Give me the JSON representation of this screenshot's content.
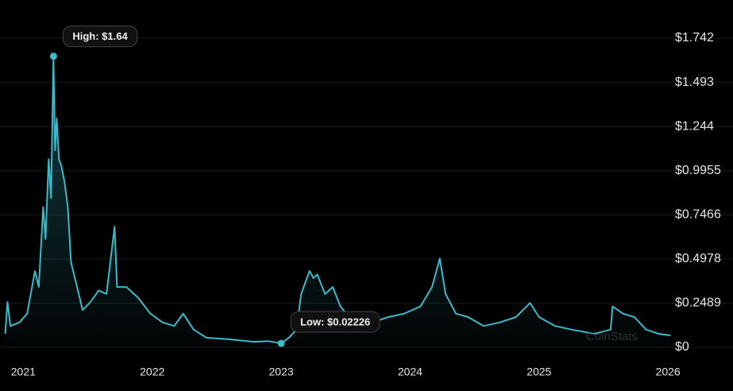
{
  "chart_data": {
    "type": "line",
    "watermark": "CoinStats",
    "x": [
      2020.86,
      2020.877,
      2020.9,
      2020.97,
      2021.03,
      2021.09,
      2021.12,
      2021.154,
      2021.172,
      2021.197,
      2021.215,
      2021.234,
      2021.246,
      2021.259,
      2021.277,
      2021.296,
      2021.32,
      2021.345,
      2021.37,
      2021.4,
      2021.43,
      2021.46,
      2021.52,
      2021.585,
      2021.645,
      2021.708,
      2021.727,
      2021.8,
      2021.89,
      2021.985,
      2022.08,
      2022.17,
      2022.24,
      2022.32,
      2022.42,
      2022.6,
      2022.79,
      2022.9,
      2023.0,
      2023.06,
      2023.12,
      2023.155,
      2023.22,
      2023.25,
      2023.28,
      2023.34,
      2023.4,
      2023.46,
      2023.585,
      2023.71,
      2023.83,
      2023.955,
      2024.08,
      2024.17,
      2024.23,
      2024.275,
      2024.355,
      2024.45,
      2024.57,
      2024.695,
      2024.82,
      2024.93,
      2025.0,
      2025.125,
      2025.25,
      2025.43,
      2025.555,
      2025.57,
      2025.65,
      2025.74,
      2025.83,
      2025.925,
      2026.02
    ],
    "series": [
      {
        "color": "#3db9c9",
        "values": [
          0.076,
          0.255,
          0.12,
          0.14,
          0.19,
          0.43,
          0.34,
          0.79,
          0.61,
          1.06,
          0.84,
          1.64,
          1.11,
          1.29,
          1.06,
          1.02,
          0.93,
          0.79,
          0.48,
          0.39,
          0.3,
          0.21,
          0.255,
          0.32,
          0.3,
          0.68,
          0.34,
          0.34,
          0.28,
          0.19,
          0.14,
          0.12,
          0.19,
          0.1,
          0.054,
          0.045,
          0.031,
          0.035,
          0.02226,
          0.054,
          0.1,
          0.3,
          0.43,
          0.39,
          0.41,
          0.3,
          0.34,
          0.23,
          0.12,
          0.14,
          0.17,
          0.19,
          0.23,
          0.34,
          0.5,
          0.3,
          0.19,
          0.17,
          0.12,
          0.14,
          0.17,
          0.25,
          0.17,
          0.12,
          0.1,
          0.076,
          0.1,
          0.23,
          0.19,
          0.17,
          0.1,
          0.076,
          0.067
        ]
      }
    ],
    "annotations": [
      {
        "text": "High: $1.64",
        "x": 2021.234,
        "y": 1.64
      },
      {
        "text": "Low: $0.02226",
        "x": 2023.0,
        "y": 0.02226
      }
    ],
    "xlim": [
      2020.85,
      2026.03
    ],
    "xticks": [
      2021,
      2022,
      2023,
      2024,
      2025,
      2026
    ],
    "ylim": [
      0,
      1.742
    ],
    "yticks": [
      {
        "value": 0,
        "label": "$0"
      },
      {
        "value": 0.2489,
        "label": "$0.2489"
      },
      {
        "value": 0.4978,
        "label": "$0.4978"
      },
      {
        "value": 0.7466,
        "label": "$0.7466"
      },
      {
        "value": 0.9955,
        "label": "$0.9955"
      },
      {
        "value": 1.244,
        "label": "$1.244"
      },
      {
        "value": 1.493,
        "label": "$1.493"
      },
      {
        "value": 1.742,
        "label": "$1.742"
      }
    ],
    "grid": true
  }
}
